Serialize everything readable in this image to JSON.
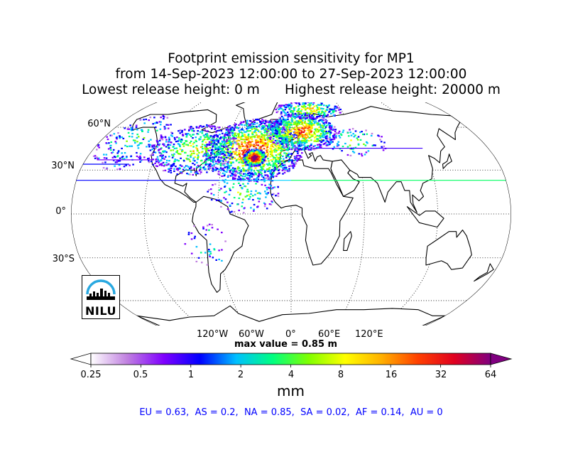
{
  "title": {
    "line1": "Footprint emission sensitivity for MP1",
    "line2": "from 14-Sep-2023 12:00:00 to 27-Sep-2023 12:00:00",
    "line3": "Lowest release height: 0 m      Highest release height: 20000 m"
  },
  "map": {
    "projection": "robinson",
    "lat_labels": [
      "60°N",
      "30°N",
      "0°",
      "30°S"
    ],
    "lon_labels": [
      "120°W",
      "60°W",
      "0°",
      "60°E",
      "120°E"
    ],
    "max_value_text": "max value = 0.85 m"
  },
  "colorbar": {
    "ticks": [
      "0.25",
      "0.5",
      "1",
      "2",
      "4",
      "8",
      "16",
      "32",
      "64"
    ],
    "unit": "mm",
    "colors": [
      "#ffffff",
      "#c080e0",
      "#8000ff",
      "#0000ff",
      "#00c0ff",
      "#00ff80",
      "#80ff00",
      "#ffff00",
      "#ffb000",
      "#ff4000",
      "#e00020",
      "#800080"
    ]
  },
  "region_stats": "EU = 0.63,  AS = 0.2,  NA = 0.85,  SA = 0.02,  AF = 0.14,  AU = 0",
  "logo": {
    "text": "NILU"
  }
}
